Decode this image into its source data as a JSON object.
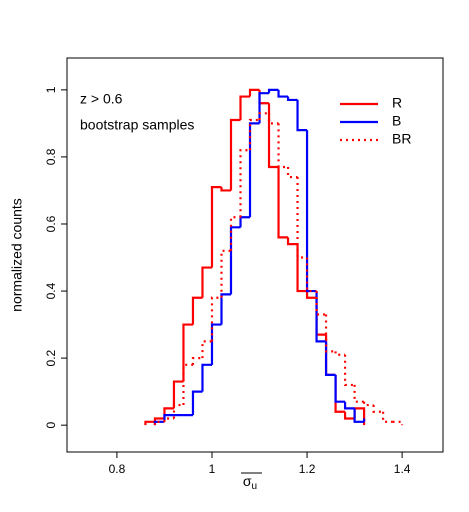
{
  "chart_data": {
    "type": "step_histogram",
    "annotations": [
      "z > 0.6",
      "bootstrap samples"
    ],
    "x_label": {
      "symbol": "σ",
      "subscript": "u"
    },
    "y_label": "normalized counts",
    "xlim": [
      0.695,
      1.486
    ],
    "ylim": [
      -0.08,
      1.095
    ],
    "xticks": [
      0.8,
      1,
      1.2,
      1.4
    ],
    "yticks": [
      0,
      0.2,
      0.4,
      0.6,
      0.8,
      1
    ],
    "legend": "top-right",
    "series": [
      {
        "name": "R",
        "color": "#ff0000",
        "dash": "solid",
        "bins": [
          0.86,
          0.88,
          0.9,
          0.92,
          0.94,
          0.96,
          0.98,
          1.0,
          1.02,
          1.04,
          1.06,
          1.08,
          1.1,
          1.12,
          1.14,
          1.16,
          1.18,
          1.2,
          1.22,
          1.24,
          1.26,
          1.28,
          1.3,
          1.32
        ],
        "values": [
          0.01,
          0.02,
          0.05,
          0.13,
          0.3,
          0.38,
          0.47,
          0.71,
          0.7,
          0.91,
          0.98,
          1.0,
          0.96,
          0.77,
          0.56,
          0.54,
          0.4,
          0.38,
          0.27,
          0.15,
          0.04,
          0.02,
          0.05
        ]
      },
      {
        "name": "B",
        "color": "#0000ff",
        "dash": "solid",
        "bins": [
          0.88,
          0.9,
          0.92,
          0.94,
          0.96,
          0.98,
          1.0,
          1.02,
          1.04,
          1.06,
          1.08,
          1.1,
          1.12,
          1.14,
          1.16,
          1.18,
          1.2,
          1.22,
          1.24,
          1.26,
          1.28,
          1.3,
          1.32
        ],
        "values": [
          0.01,
          0.03,
          0.03,
          0.03,
          0.1,
          0.18,
          0.3,
          0.39,
          0.59,
          0.62,
          0.9,
          0.99,
          1.0,
          0.98,
          0.97,
          0.88,
          0.4,
          0.25,
          0.15,
          0.07,
          0.05,
          0.01,
          0.02
        ]
      },
      {
        "name": "BR",
        "color": "#ff0000",
        "dash": "dotted",
        "bins": [
          0.88,
          0.9,
          0.92,
          0.94,
          0.96,
          0.98,
          1.0,
          1.02,
          1.04,
          1.06,
          1.08,
          1.1,
          1.12,
          1.14,
          1.16,
          1.18,
          1.2,
          1.22,
          1.24,
          1.26,
          1.28,
          1.3,
          1.32,
          1.34,
          1.36,
          1.38,
          1.4
        ],
        "values": [
          0.01,
          0.02,
          0.06,
          0.18,
          0.2,
          0.25,
          0.38,
          0.52,
          0.62,
          0.82,
          0.91,
          0.93,
          0.9,
          0.77,
          0.74,
          0.5,
          0.4,
          0.33,
          0.22,
          0.21,
          0.12,
          0.07,
          0.06,
          0.04,
          0.01,
          0.01
        ]
      }
    ]
  }
}
